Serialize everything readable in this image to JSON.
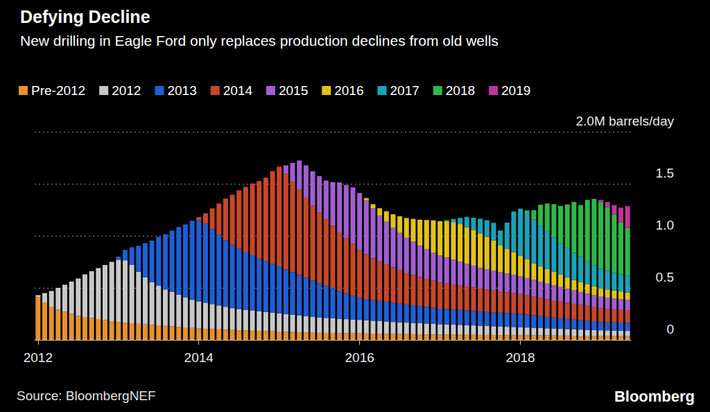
{
  "chart_data": {
    "type": "bar",
    "title": "Defying Decline",
    "subtitle": "New drilling in Eagle Ford only replaces production declines from old wells",
    "annotations": [
      "Source: BloombergNEF",
      "Bloomberg"
    ],
    "stacked": true,
    "grid": true,
    "legend": "top-left",
    "ylim": [
      0,
      2
    ],
    "yticks": [
      0,
      0.5,
      {
        "value": 1,
        "label": "1.0"
      },
      1.5,
      {
        "value": 2,
        "label": "2.0M barrels/day"
      }
    ],
    "categories": [
      "2012",
      null,
      null,
      null,
      null,
      null,
      null,
      null,
      null,
      null,
      null,
      null,
      null,
      null,
      null,
      null,
      null,
      null,
      null,
      null,
      null,
      null,
      null,
      null,
      "2014",
      null,
      null,
      null,
      null,
      null,
      null,
      null,
      null,
      null,
      null,
      null,
      null,
      null,
      null,
      null,
      null,
      null,
      null,
      null,
      null,
      null,
      null,
      null,
      "2016",
      null,
      null,
      null,
      null,
      null,
      null,
      null,
      null,
      null,
      null,
      null,
      null,
      null,
      null,
      null,
      null,
      null,
      null,
      null,
      null,
      null,
      null,
      null,
      "2018",
      null,
      null,
      null,
      null,
      null,
      null,
      null,
      null,
      null,
      null,
      null,
      null,
      null,
      null,
      null,
      null
    ],
    "series": [
      {
        "name": "Pre-2012",
        "color": "#e8922e",
        "values": [
          0.41,
          0.36,
          0.32,
          0.29,
          0.27,
          0.25,
          0.23,
          0.22,
          0.21,
          0.2,
          0.19,
          0.18,
          0.17,
          0.165,
          0.16,
          0.155,
          0.15,
          0.145,
          0.14,
          0.135,
          0.13,
          0.125,
          0.12,
          0.115,
          0.11,
          0.107,
          0.104,
          0.101,
          0.098,
          0.095,
          0.092,
          0.09,
          0.088,
          0.086,
          0.084,
          0.082,
          0.08,
          0.078,
          0.076,
          0.074,
          0.072,
          0.07,
          0.068,
          0.067,
          0.066,
          0.065,
          0.064,
          0.063,
          0.062,
          0.061,
          0.06,
          0.059,
          0.058,
          0.057,
          0.056,
          0.055,
          0.054,
          0.053,
          0.052,
          0.051,
          0.05,
          0.05,
          0.049,
          0.049,
          0.048,
          0.048,
          0.047,
          0.047,
          0.046,
          0.046,
          0.045,
          0.045,
          0.044,
          0.044,
          0.043,
          0.043,
          0.042,
          0.042,
          0.041,
          0.041,
          0.04,
          0.04,
          0.039,
          0.039,
          0.038,
          0.038,
          0.037,
          0.037,
          0.036
        ]
      },
      {
        "name": "2012",
        "color": "#c8c8c8",
        "values": [
          0.02,
          0.09,
          0.15,
          0.21,
          0.26,
          0.31,
          0.36,
          0.41,
          0.45,
          0.49,
          0.53,
          0.57,
          0.6,
          0.6,
          0.56,
          0.5,
          0.45,
          0.41,
          0.38,
          0.35,
          0.33,
          0.31,
          0.29,
          0.27,
          0.26,
          0.25,
          0.24,
          0.23,
          0.22,
          0.21,
          0.205,
          0.2,
          0.195,
          0.19,
          0.185,
          0.18,
          0.175,
          0.17,
          0.165,
          0.16,
          0.155,
          0.15,
          0.147,
          0.144,
          0.141,
          0.138,
          0.135,
          0.132,
          0.13,
          0.127,
          0.124,
          0.121,
          0.118,
          0.115,
          0.113,
          0.111,
          0.109,
          0.107,
          0.105,
          0.103,
          0.1,
          0.099,
          0.097,
          0.095,
          0.093,
          0.091,
          0.089,
          0.087,
          0.085,
          0.083,
          0.081,
          0.079,
          0.077,
          0.075,
          0.073,
          0.071,
          0.069,
          0.067,
          0.065,
          0.063,
          0.061,
          0.059,
          0.057,
          0.055,
          0.054,
          0.053,
          0.052,
          0.051,
          0.05
        ]
      },
      {
        "name": "2013",
        "color": "#1f5fd6",
        "values": [
          0,
          0,
          0,
          0,
          0,
          0,
          0,
          0,
          0,
          0,
          0,
          0,
          0.03,
          0.1,
          0.17,
          0.25,
          0.33,
          0.4,
          0.47,
          0.53,
          0.59,
          0.65,
          0.7,
          0.76,
          0.78,
          0.76,
          0.72,
          0.68,
          0.64,
          0.61,
          0.58,
          0.55,
          0.53,
          0.51,
          0.49,
          0.47,
          0.45,
          0.43,
          0.41,
          0.39,
          0.37,
          0.35,
          0.33,
          0.31,
          0.29,
          0.27,
          0.25,
          0.23,
          0.21,
          0.205,
          0.2,
          0.195,
          0.19,
          0.185,
          0.18,
          0.175,
          0.17,
          0.165,
          0.16,
          0.155,
          0.15,
          0.148,
          0.146,
          0.144,
          0.142,
          0.14,
          0.138,
          0.136,
          0.134,
          0.132,
          0.131,
          0.13,
          0.13,
          0.125,
          0.12,
          0.115,
          0.11,
          0.106,
          0.102,
          0.098,
          0.095,
          0.092,
          0.089,
          0.086,
          0.083,
          0.081,
          0.08,
          0.079,
          0.078
        ]
      },
      {
        "name": "2014",
        "color": "#c8472a",
        "values": [
          0,
          0,
          0,
          0,
          0,
          0,
          0,
          0,
          0,
          0,
          0,
          0,
          0,
          0,
          0,
          0,
          0,
          0,
          0,
          0,
          0,
          0,
          0,
          0,
          0.03,
          0.1,
          0.2,
          0.3,
          0.4,
          0.48,
          0.56,
          0.63,
          0.69,
          0.74,
          0.8,
          0.89,
          0.96,
          0.92,
          0.87,
          0.82,
          0.77,
          0.72,
          0.68,
          0.64,
          0.6,
          0.56,
          0.53,
          0.5,
          0.46,
          0.43,
          0.4,
          0.38,
          0.36,
          0.34,
          0.32,
          0.3,
          0.29,
          0.28,
          0.27,
          0.26,
          0.25,
          0.245,
          0.24,
          0.235,
          0.23,
          0.225,
          0.22,
          0.215,
          0.21,
          0.205,
          0.2,
          0.195,
          0.19,
          0.185,
          0.18,
          0.175,
          0.17,
          0.165,
          0.16,
          0.155,
          0.15,
          0.145,
          0.14,
          0.135,
          0.13,
          0.127,
          0.124,
          0.121,
          0.118
        ]
      },
      {
        "name": "2015",
        "color": "#a05fd0",
        "values": [
          0,
          0,
          0,
          0,
          0,
          0,
          0,
          0,
          0,
          0,
          0,
          0,
          0,
          0,
          0,
          0,
          0,
          0,
          0,
          0,
          0,
          0,
          0,
          0,
          0,
          0,
          0,
          0,
          0,
          0,
          0,
          0,
          0,
          0,
          0,
          0,
          0,
          0.08,
          0.18,
          0.28,
          0.31,
          0.33,
          0.35,
          0.37,
          0.42,
          0.48,
          0.51,
          0.54,
          0.55,
          0.52,
          0.48,
          0.44,
          0.41,
          0.38,
          0.36,
          0.34,
          0.32,
          0.3,
          0.285,
          0.27,
          0.26,
          0.25,
          0.24,
          0.23,
          0.22,
          0.21,
          0.2,
          0.195,
          0.19,
          0.185,
          0.18,
          0.175,
          0.17,
          0.165,
          0.16,
          0.155,
          0.15,
          0.145,
          0.14,
          0.135,
          0.13,
          0.125,
          0.12,
          0.115,
          0.11,
          0.108,
          0.106,
          0.104,
          0.102
        ]
      },
      {
        "name": "2016",
        "color": "#e2c21a",
        "values": [
          0,
          0,
          0,
          0,
          0,
          0,
          0,
          0,
          0,
          0,
          0,
          0,
          0,
          0,
          0,
          0,
          0,
          0,
          0,
          0,
          0,
          0,
          0,
          0,
          0,
          0,
          0,
          0,
          0,
          0,
          0,
          0,
          0,
          0,
          0,
          0,
          0,
          0,
          0,
          0,
          0,
          0,
          0,
          0,
          0,
          0,
          0,
          0,
          0,
          0.02,
          0.04,
          0.07,
          0.1,
          0.13,
          0.16,
          0.19,
          0.22,
          0.25,
          0.28,
          0.31,
          0.33,
          0.35,
          0.36,
          0.36,
          0.35,
          0.34,
          0.33,
          0.31,
          0.29,
          0.26,
          0.24,
          0.22,
          0.2,
          0.18,
          0.16,
          0.15,
          0.14,
          0.13,
          0.12,
          0.11,
          0.1,
          0.095,
          0.09,
          0.085,
          0.08,
          0.078,
          0.076,
          0.074,
          0.072
        ]
      },
      {
        "name": "2017",
        "color": "#1aa3b8",
        "values": [
          0,
          0,
          0,
          0,
          0,
          0,
          0,
          0,
          0,
          0,
          0,
          0,
          0,
          0,
          0,
          0,
          0,
          0,
          0,
          0,
          0,
          0,
          0,
          0,
          0,
          0,
          0,
          0,
          0,
          0,
          0,
          0,
          0,
          0,
          0,
          0,
          0,
          0,
          0,
          0,
          0,
          0,
          0,
          0,
          0,
          0,
          0,
          0,
          0,
          0,
          0,
          0,
          0,
          0,
          0,
          0,
          0,
          0,
          0,
          0,
          0,
          0.01,
          0.03,
          0.06,
          0.1,
          0.12,
          0.14,
          0.16,
          0.17,
          0.14,
          0.25,
          0.39,
          0.45,
          0.44,
          0.42,
          0.39,
          0.36,
          0.33,
          0.3,
          0.28,
          0.26,
          0.24,
          0.22,
          0.2,
          0.19,
          0.18,
          0.17,
          0.165,
          0.16
        ]
      },
      {
        "name": "2018",
        "color": "#2fb84a",
        "values": [
          0,
          0,
          0,
          0,
          0,
          0,
          0,
          0,
          0,
          0,
          0,
          0,
          0,
          0,
          0,
          0,
          0,
          0,
          0,
          0,
          0,
          0,
          0,
          0,
          0,
          0,
          0,
          0,
          0,
          0,
          0,
          0,
          0,
          0,
          0,
          0,
          0,
          0,
          0,
          0,
          0,
          0,
          0,
          0,
          0,
          0,
          0,
          0,
          0,
          0,
          0,
          0,
          0,
          0,
          0,
          0,
          0,
          0,
          0,
          0,
          0,
          0,
          0,
          0,
          0,
          0,
          0,
          0,
          0,
          0,
          0,
          0,
          0,
          0.03,
          0.09,
          0.2,
          0.27,
          0.32,
          0.36,
          0.42,
          0.49,
          0.5,
          0.59,
          0.64,
          0.64,
          0.61,
          0.56,
          0.5,
          0.46
        ]
      },
      {
        "name": "2019",
        "color": "#c0359a",
        "values": [
          0,
          0,
          0,
          0,
          0,
          0,
          0,
          0,
          0,
          0,
          0,
          0,
          0,
          0,
          0,
          0,
          0,
          0,
          0,
          0,
          0,
          0,
          0,
          0,
          0,
          0,
          0,
          0,
          0,
          0,
          0,
          0,
          0,
          0,
          0,
          0,
          0,
          0,
          0,
          0,
          0,
          0,
          0,
          0,
          0,
          0,
          0,
          0,
          0,
          0,
          0,
          0,
          0,
          0,
          0,
          0,
          0,
          0,
          0,
          0,
          0,
          0,
          0,
          0,
          0,
          0,
          0,
          0,
          0,
          0,
          0,
          0,
          0,
          0,
          0,
          0,
          0,
          0,
          0,
          0,
          0,
          0,
          0,
          0,
          0.02,
          0.05,
          0.09,
          0.14,
          0.21
        ]
      }
    ]
  }
}
